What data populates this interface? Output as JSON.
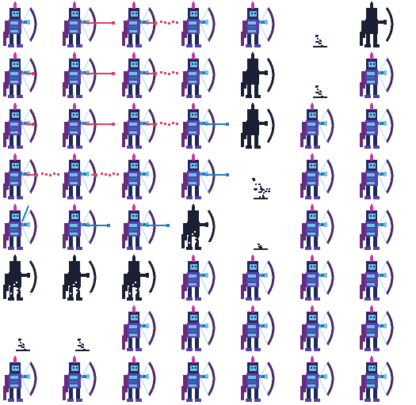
{
  "sheet": {
    "kind": "sprite-sheet",
    "subject": "skeleton-archer",
    "columns": 7,
    "rows": 8,
    "colors": {
      "background": "#ffffff",
      "body_blue": "#2f6fb0",
      "body_light": "#6cc3e8",
      "body_dark": "#1c2a5a",
      "armor_purple": "#5a3fa8",
      "hood_indigo": "#2a2560",
      "cape_violet": "#6a2a7a",
      "crest_pink": "#c83aa0",
      "bow_wood": "#4a2a6a",
      "bowstring": "#9fd8ee",
      "arrow_red": "#d94060",
      "arrow_blue": "#2a7ab8",
      "shadow_silhouette": "#1a1f33"
    },
    "frames": [
      [
        "idle",
        "shoot-red",
        "shoot-red-trail",
        "idle",
        "aim",
        "fade-small",
        "silhouette-idle"
      ],
      [
        "idle-red",
        "shoot-red",
        "shoot-red-trail",
        "idle",
        "silhouette-aim",
        "fade-small",
        "idle"
      ],
      [
        "idle-red",
        "shoot-red",
        "shoot-red-trail",
        "shoot-blue",
        "silhouette-aim",
        "idle",
        "idle"
      ],
      [
        "shoot-red-trail",
        "shoot-blue-faint",
        "idle",
        "aim-blue",
        "fade-medium",
        "idle",
        "idle"
      ],
      [
        "aim-up",
        "shoot-blue",
        "shoot-blue",
        "silhouette-break",
        "fade-tiny",
        "idle",
        "walk"
      ],
      [
        "silhouette-break",
        "silhouette-break",
        "silhouette-break",
        "idle",
        "idle",
        "idle",
        "walk"
      ],
      [
        "fade-small",
        "fade-small",
        "idle",
        "idle",
        "idle",
        "idle",
        "walk"
      ],
      [
        "idle",
        "idle",
        "idle",
        "walk",
        "idle",
        "idle",
        "walk"
      ]
    ]
  }
}
